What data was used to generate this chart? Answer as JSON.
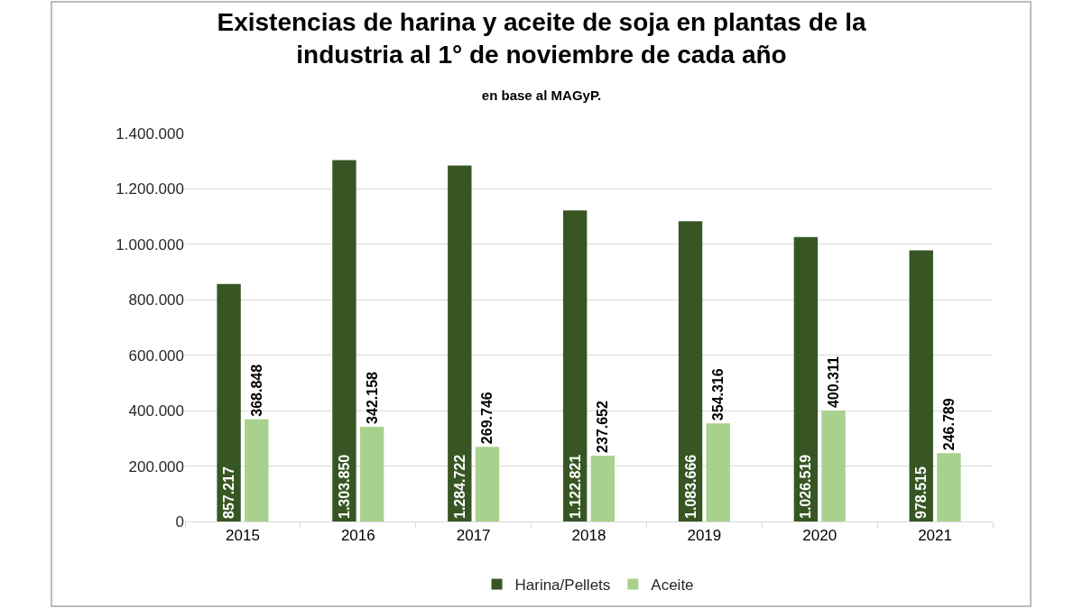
{
  "chart_data": {
    "type": "bar",
    "title": "Existencias de harina y aceite de soja en plantas de la industria al 1° de noviembre de cada año",
    "subtitle": "en base al MAGyP.",
    "categories": [
      "2015",
      "2016",
      "2017",
      "2018",
      "2019",
      "2020",
      "2021"
    ],
    "series": [
      {
        "name": "Harina/Pellets",
        "color": "#375623",
        "values": [
          857217,
          1303850,
          1284722,
          1122821,
          1083666,
          1026519,
          978515
        ],
        "value_labels": [
          "857.217",
          "1.303.850",
          "1.284.722",
          "1.122.821",
          "1.083.666",
          "1.026.519",
          "978.515"
        ]
      },
      {
        "name": "Aceite",
        "color": "#a9d18e",
        "values": [
          368848,
          342158,
          269746,
          237652,
          354316,
          400311,
          246789
        ],
        "value_labels": [
          "368.848",
          "342.158",
          "269.746",
          "237.652",
          "354.316",
          "400.311",
          "246.789"
        ]
      }
    ],
    "ylim": [
      0,
      1400000
    ],
    "yticks": [
      0,
      {
        "value": 200000,
        "label": "200.000"
      },
      {
        "value": 400000,
        "label": "400.000"
      },
      {
        "value": 600000,
        "label": "600.000"
      },
      {
        "value": 800000,
        "label": "800.000"
      },
      {
        "value": 1000000,
        "label": "1.000.000"
      },
      {
        "value": 1200000,
        "label": "1.200.000"
      },
      {
        "value": 1400000,
        "label": "1.400.000"
      }
    ],
    "grid": "y",
    "legend": "bottom"
  }
}
